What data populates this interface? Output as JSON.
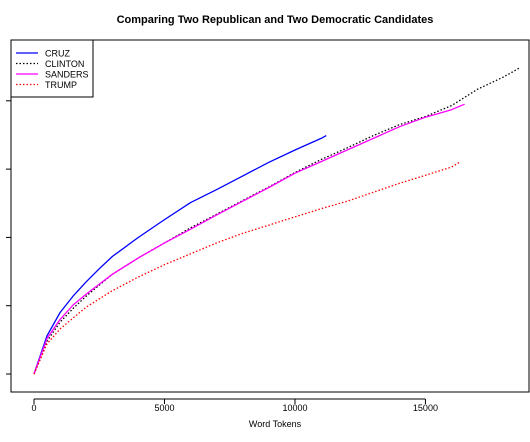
{
  "chart_data": {
    "type": "line",
    "title": "Comparing Two Republican and Two Democratic Candidates",
    "xlabel": "Word Tokens",
    "ylabel": "",
    "xlim": [
      0,
      18700
    ],
    "ylim": [
      0,
      2350
    ],
    "x_ticks": [
      0,
      5000,
      10000,
      15000
    ],
    "x_tick_labels": [
      "0",
      "5000",
      "10000",
      "15000"
    ],
    "y_ticks": [
      0,
      500,
      1000,
      1500,
      2000
    ],
    "y_tick_labels": [
      "",
      "",
      "",
      "",
      ""
    ],
    "legend_position": "top-left",
    "series": [
      {
        "name": "CRUZ",
        "color": "#0000ff",
        "style": "solid",
        "x": [
          0,
          500,
          1000,
          1500,
          2000,
          2500,
          3000,
          4000,
          5000,
          6000,
          7000,
          8000,
          9000,
          10000,
          11000,
          11200
        ],
        "y": [
          0,
          280,
          450,
          570,
          675,
          770,
          860,
          1000,
          1130,
          1255,
          1350,
          1450,
          1550,
          1640,
          1725,
          1745
        ]
      },
      {
        "name": "CLINTON",
        "color": "#000000",
        "style": "dotted",
        "x": [
          0,
          500,
          1000,
          1500,
          2000,
          3000,
          4000,
          5000,
          6000,
          7000,
          8000,
          9000,
          10000,
          11000,
          12000,
          13000,
          14000,
          15000,
          16000,
          17000,
          18000,
          18600
        ],
        "y": [
          0,
          240,
          380,
          480,
          570,
          730,
          850,
          960,
          1070,
          1170,
          1270,
          1370,
          1475,
          1570,
          1655,
          1745,
          1825,
          1885,
          1965,
          2085,
          2175,
          2240
        ]
      },
      {
        "name": "SANDERS",
        "color": "#ff00ff",
        "style": "solid",
        "x": [
          0,
          500,
          1000,
          1500,
          2000,
          3000,
          4000,
          5000,
          6000,
          7000,
          8000,
          9000,
          10000,
          11000,
          12000,
          13000,
          14000,
          15000,
          16000,
          16500
        ],
        "y": [
          0,
          260,
          400,
          505,
          585,
          730,
          850,
          960,
          1060,
          1165,
          1265,
          1365,
          1470,
          1555,
          1640,
          1725,
          1810,
          1880,
          1935,
          1975
        ]
      },
      {
        "name": "TRUMP",
        "color": "#ff0000",
        "style": "dotted",
        "x": [
          0,
          500,
          1000,
          1500,
          2000,
          3000,
          4000,
          5000,
          6000,
          7000,
          8000,
          9000,
          10000,
          11000,
          12000,
          13000,
          14000,
          15000,
          16000,
          16300
        ],
        "y": [
          0,
          220,
          330,
          410,
          490,
          610,
          710,
          800,
          880,
          960,
          1030,
          1090,
          1150,
          1210,
          1265,
          1330,
          1395,
          1455,
          1515,
          1550
        ]
      }
    ]
  }
}
